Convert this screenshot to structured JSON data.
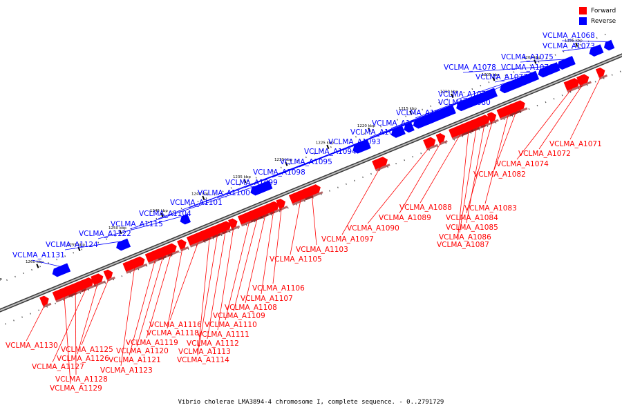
{
  "legend": [
    {
      "label": "Forward",
      "color": "#ff0000"
    },
    {
      "label": "Reverse",
      "color": "#0000ff"
    }
  ],
  "caption": "Vibrio cholerae LMA3894-4 chromosome I, complete sequence. - 0..2791729",
  "colors": {
    "forward": "#ff0000",
    "reverse": "#0000ff",
    "axis": "#808080",
    "tick": "#000000"
  },
  "scale_ticks": [
    "1195 kbp",
    "1200 kbp",
    "1205 kbp",
    "1210 kbp",
    "1215 kbp",
    "1220 kbp",
    "1225 kbp",
    "1230 kbp",
    "1235 kbp",
    "1240 kbp",
    "1245 kbp",
    "1250 kbp",
    "1255 kbp",
    "1260 kbp",
    "1265 kbp"
  ],
  "reverse_labels": [
    "VCLMA_A1068",
    "VCLMA_A1073",
    "VCLMA_A1075",
    "VCLMA_A1078",
    "VCLMA_A1076",
    "VCLMA_A1077",
    "VCLMA_A1079",
    "VCLMA_A1080",
    "VCLMA_A1081",
    "VCLMA_A1091",
    "VCLMA_A1092",
    "VCLMA_A1093",
    "VCLMA_A1094",
    "VCLMA_A1095",
    "VCLMA_A1098",
    "VCLMA_A1099",
    "VCLMA_A1100",
    "VCLMA_A1101",
    "VCLMA_A1104",
    "VCLMA_A1115",
    "VCLMA_A1122",
    "VCLMA_A1124",
    "VCLMA_A1131"
  ],
  "forward_labels": [
    "VCLMA_A1071",
    "VCLMA_A1072",
    "VCLMA_A1074",
    "VCLMA_A1082",
    "VCLMA_A1083",
    "VCLMA_A1084",
    "VCLMA_A1085",
    "VCLMA_A1086",
    "VCLMA_A1087",
    "VCLMA_A1088",
    "VCLMA_A1089",
    "VCLMA_A1090",
    "VCLMA_A1097",
    "VCLMA_A1103",
    "VCLMA_A1105",
    "VCLMA_A1106",
    "VCLMA_A1107",
    "VCLMA_A1108",
    "VCLMA_A1109",
    "VCLMA_A1110",
    "VCLMA_A1111",
    "VCLMA_A1112",
    "VCLMA_A1113",
    "VCLMA_A1114",
    "VCLMA_A1116",
    "VCLMA_A1118",
    "VCLMA_A1119",
    "VCLMA_A1120",
    "VCLMA_A1121",
    "VCLMA_A1123",
    "VCLMA_A1125",
    "VCLMA_A1126",
    "VCLMA_A1127",
    "VCLMA_A1128",
    "VCLMA_A1129",
    "VCLMA_A1130"
  ]
}
